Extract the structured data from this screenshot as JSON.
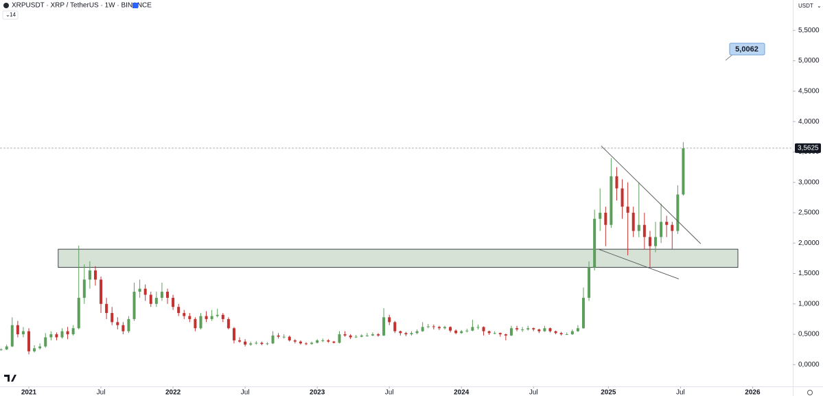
{
  "chart_data": {
    "type": "candlestick",
    "title": "XRPUSDT · XRP / TetherUS · 1W · BINANCE",
    "indicator_label": "14",
    "currency": "USDT",
    "up_color": "#5b9f5b",
    "down_color": "#c4322f",
    "x": [
      -10,
      -8,
      -6,
      -4,
      -2,
      0,
      2,
      4,
      6,
      8,
      10,
      12,
      14,
      16,
      18,
      20,
      22,
      24,
      26,
      28,
      30,
      32,
      34,
      36,
      38,
      40,
      42,
      44,
      46,
      48,
      50,
      52,
      54,
      56,
      58,
      60,
      62,
      64,
      66,
      68,
      70,
      72,
      74,
      76,
      78,
      80,
      82,
      84,
      86,
      88,
      90,
      92,
      94,
      96,
      98,
      100,
      102,
      104,
      106,
      108,
      110,
      112,
      114,
      116,
      118,
      120,
      122,
      124,
      126,
      128,
      130,
      132,
      134,
      136,
      138,
      140,
      142,
      144,
      146,
      148,
      150,
      152,
      154,
      156,
      158,
      160,
      162,
      164,
      166,
      168,
      170,
      172,
      174,
      176,
      178,
      180,
      182,
      184,
      186,
      188,
      190,
      192,
      194,
      196,
      198,
      200,
      202,
      204,
      206,
      208,
      210,
      212,
      214,
      216,
      218,
      220,
      222,
      224,
      226,
      228,
      230,
      232,
      234,
      236
    ],
    "open": [
      0.24,
      0.25,
      0.3,
      0.65,
      0.5,
      0.55,
      0.22,
      0.27,
      0.3,
      0.45,
      0.5,
      0.45,
      0.55,
      0.5,
      0.6,
      1.1,
      1.4,
      1.55,
      1.4,
      1.0,
      0.85,
      0.7,
      0.65,
      0.55,
      0.75,
      1.2,
      1.25,
      1.15,
      1.0,
      1.1,
      1.2,
      1.1,
      0.95,
      0.85,
      0.8,
      0.75,
      0.6,
      0.8,
      0.75,
      0.8,
      0.82,
      0.75,
      0.6,
      0.4,
      0.38,
      0.33,
      0.35,
      0.36,
      0.34,
      0.35,
      0.48,
      0.46,
      0.46,
      0.4,
      0.38,
      0.35,
      0.34,
      0.36,
      0.4,
      0.4,
      0.38,
      0.36,
      0.5,
      0.48,
      0.45,
      0.46,
      0.48,
      0.48,
      0.5,
      0.48,
      0.78,
      0.7,
      0.55,
      0.52,
      0.5,
      0.52,
      0.55,
      0.62,
      0.63,
      0.62,
      0.6,
      0.62,
      0.56,
      0.52,
      0.55,
      0.56,
      0.62,
      0.62,
      0.55,
      0.52,
      0.52,
      0.5,
      0.48,
      0.6,
      0.58,
      0.58,
      0.6,
      0.58,
      0.55,
      0.6,
      0.55,
      0.52,
      0.5,
      0.5,
      0.55,
      0.6,
      1.1,
      1.6,
      2.4,
      2.5,
      2.3,
      3.1,
      2.9,
      2.6,
      2.5,
      2.2,
      2.3,
      2.1,
      1.95,
      2.1,
      2.35,
      2.3,
      2.2,
      2.8
    ],
    "high": [
      0.27,
      0.33,
      0.78,
      0.72,
      0.62,
      0.6,
      0.32,
      0.35,
      0.52,
      0.55,
      0.53,
      0.6,
      0.62,
      0.65,
      1.96,
      1.65,
      1.7,
      1.62,
      1.45,
      1.1,
      0.95,
      0.78,
      0.7,
      0.8,
      1.35,
      1.4,
      1.32,
      1.2,
      1.2,
      1.35,
      1.25,
      1.15,
      1.0,
      0.9,
      0.85,
      0.78,
      0.85,
      0.88,
      0.9,
      0.92,
      0.85,
      0.78,
      0.62,
      0.45,
      0.42,
      0.38,
      0.39,
      0.38,
      0.37,
      0.55,
      0.52,
      0.5,
      0.48,
      0.42,
      0.4,
      0.37,
      0.38,
      0.42,
      0.43,
      0.42,
      0.39,
      0.55,
      0.55,
      0.5,
      0.49,
      0.5,
      0.52,
      0.53,
      0.52,
      0.93,
      0.82,
      0.72,
      0.56,
      0.54,
      0.55,
      0.58,
      0.7,
      0.67,
      0.66,
      0.64,
      0.64,
      0.63,
      0.58,
      0.57,
      0.59,
      0.74,
      0.66,
      0.63,
      0.56,
      0.55,
      0.53,
      0.51,
      0.64,
      0.64,
      0.62,
      0.64,
      0.61,
      0.59,
      0.64,
      0.61,
      0.56,
      0.54,
      0.53,
      0.58,
      0.65,
      1.27,
      1.7,
      2.55,
      2.9,
      2.6,
      3.4,
      3.25,
      3.05,
      3.0,
      2.6,
      3.0,
      2.5,
      2.2,
      2.35,
      2.65,
      2.45,
      2.35,
      2.95,
      3.66
    ],
    "low": [
      0.23,
      0.24,
      0.29,
      0.45,
      0.45,
      0.17,
      0.2,
      0.25,
      0.28,
      0.4,
      0.4,
      0.43,
      0.42,
      0.48,
      0.58,
      1.0,
      1.25,
      1.3,
      0.85,
      0.75,
      0.65,
      0.58,
      0.5,
      0.52,
      0.72,
      1.1,
      1.05,
      0.95,
      0.95,
      1.05,
      1.0,
      0.9,
      0.8,
      0.75,
      0.7,
      0.55,
      0.58,
      0.7,
      0.72,
      0.78,
      0.7,
      0.58,
      0.35,
      0.36,
      0.3,
      0.31,
      0.33,
      0.32,
      0.32,
      0.34,
      0.43,
      0.43,
      0.38,
      0.35,
      0.33,
      0.32,
      0.33,
      0.35,
      0.37,
      0.36,
      0.35,
      0.35,
      0.46,
      0.42,
      0.44,
      0.45,
      0.46,
      0.47,
      0.46,
      0.47,
      0.65,
      0.52,
      0.48,
      0.47,
      0.48,
      0.5,
      0.54,
      0.6,
      0.58,
      0.57,
      0.58,
      0.53,
      0.5,
      0.51,
      0.53,
      0.55,
      0.58,
      0.48,
      0.49,
      0.5,
      0.46,
      0.4,
      0.47,
      0.55,
      0.54,
      0.56,
      0.55,
      0.52,
      0.54,
      0.53,
      0.5,
      0.48,
      0.49,
      0.49,
      0.54,
      0.59,
      1.05,
      1.55,
      2.2,
      1.95,
      2.25,
      2.7,
      2.4,
      1.8,
      2.1,
      2.1,
      1.9,
      1.61,
      1.85,
      2.0,
      2.1,
      1.9,
      2.15,
      2.78
    ],
    "close": [
      0.25,
      0.3,
      0.65,
      0.5,
      0.55,
      0.22,
      0.27,
      0.3,
      0.45,
      0.5,
      0.45,
      0.55,
      0.5,
      0.6,
      1.1,
      1.4,
      1.55,
      1.4,
      1.0,
      0.85,
      0.7,
      0.65,
      0.55,
      0.75,
      1.2,
      1.25,
      1.15,
      1.0,
      1.1,
      1.2,
      1.1,
      0.95,
      0.85,
      0.8,
      0.75,
      0.6,
      0.8,
      0.75,
      0.8,
      0.82,
      0.75,
      0.6,
      0.4,
      0.38,
      0.33,
      0.35,
      0.36,
      0.34,
      0.35,
      0.48,
      0.46,
      0.46,
      0.4,
      0.38,
      0.35,
      0.34,
      0.36,
      0.4,
      0.4,
      0.38,
      0.36,
      0.5,
      0.48,
      0.45,
      0.46,
      0.48,
      0.48,
      0.5,
      0.48,
      0.78,
      0.7,
      0.55,
      0.52,
      0.5,
      0.52,
      0.55,
      0.62,
      0.63,
      0.62,
      0.6,
      0.62,
      0.56,
      0.52,
      0.55,
      0.56,
      0.62,
      0.62,
      0.55,
      0.52,
      0.52,
      0.5,
      0.48,
      0.6,
      0.58,
      0.58,
      0.6,
      0.58,
      0.55,
      0.6,
      0.55,
      0.52,
      0.5,
      0.5,
      0.55,
      0.6,
      1.1,
      1.6,
      2.4,
      2.5,
      2.3,
      3.1,
      2.9,
      2.6,
      2.5,
      2.2,
      2.3,
      2.1,
      1.95,
      2.1,
      2.35,
      2.3,
      2.2,
      2.8,
      3.56
    ],
    "xlim": [
      -10.4,
      275.5
    ],
    "ylim": [
      -0.38,
      6.0
    ],
    "xticks": [
      {
        "value": 0,
        "label": "2021"
      },
      {
        "value": 26,
        "label": "Jul"
      },
      {
        "value": 52,
        "label": "2022"
      },
      {
        "value": 78,
        "label": "Jul"
      },
      {
        "value": 104,
        "label": "2023"
      },
      {
        "value": 130,
        "label": "Jul"
      },
      {
        "value": 156,
        "label": "2024"
      },
      {
        "value": 182,
        "label": "Jul"
      },
      {
        "value": 209,
        "label": "2025"
      },
      {
        "value": 235,
        "label": "Jul"
      },
      {
        "value": 261,
        "label": "2026"
      }
    ],
    "yticks": [
      {
        "value": 0,
        "label": "0,0000"
      },
      {
        "value": 0.5,
        "label": "0,5000"
      },
      {
        "value": 1,
        "label": "1,0000"
      },
      {
        "value": 1.5,
        "label": "1,5000"
      },
      {
        "value": 2,
        "label": "2,0000"
      },
      {
        "value": 2.5,
        "label": "2,5000"
      },
      {
        "value": 3,
        "label": "3,0000"
      },
      {
        "value": 3.5,
        "label": "3,5000"
      },
      {
        "value": 4,
        "label": "4,0000"
      },
      {
        "value": 4.5,
        "label": "4,5000"
      },
      {
        "value": 5,
        "label": "5,0000"
      },
      {
        "value": 5.5,
        "label": "5,5000"
      }
    ],
    "last_price": {
      "value": 3.5625,
      "label": "3,5625"
    },
    "target": {
      "value": 5.0062,
      "label": "5,0062"
    },
    "zone": {
      "x": [
        10.6,
        255.7
      ],
      "y": [
        1.6,
        1.9
      ]
    },
    "trendlines": [
      {
        "x": [
          206.4,
          242.3
        ],
        "y": [
          3.6,
          1.99
        ]
      },
      {
        "x": [
          205.4,
          234.4
        ],
        "y": [
          1.9,
          1.41
        ]
      }
    ]
  }
}
